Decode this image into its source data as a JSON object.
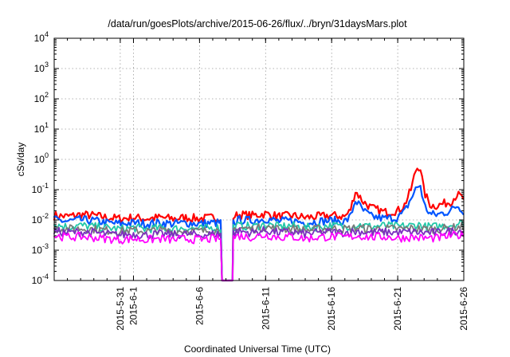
{
  "chart_data": {
    "type": "line",
    "title": "/data/run/goesPlots/archive/2015-06-26/flux/../bryn/31daysMars.plot",
    "xlabel": "Coordinated Universal Time (UTC)",
    "ylabel": "cSv/day",
    "yscale": "log",
    "ylim": [
      0.0001,
      10000
    ],
    "xlim_days": [
      0,
      31
    ],
    "y_ticks": [
      {
        "base": "10",
        "exp": "-4",
        "value": 0.0001
      },
      {
        "base": "10",
        "exp": "-3",
        "value": 0.001
      },
      {
        "base": "10",
        "exp": "-2",
        "value": 0.01
      },
      {
        "base": "10",
        "exp": "-1",
        "value": 0.1
      },
      {
        "base": "10",
        "exp": "0",
        "value": 1
      },
      {
        "base": "10",
        "exp": "1",
        "value": 10
      },
      {
        "base": "10",
        "exp": "2",
        "value": 100
      },
      {
        "base": "10",
        "exp": "3",
        "value": 1000
      },
      {
        "base": "10",
        "exp": "4",
        "value": 10000
      }
    ],
    "x_ticks": [
      {
        "label": "2015-5-31",
        "day": 5
      },
      {
        "label": "2015-6-1",
        "day": 6
      },
      {
        "label": "2015-6-6",
        "day": 11
      },
      {
        "label": "2015-6-11",
        "day": 16
      },
      {
        "label": "2015-6-16",
        "day": 21
      },
      {
        "label": "2015-6-21",
        "day": 26
      },
      {
        "label": "2015-6-26",
        "day": 31
      }
    ],
    "grid": true,
    "dropout": {
      "start_day": 12.7,
      "end_day": 13.5
    },
    "series": [
      {
        "color": "#ff0000",
        "x": [
          0,
          1,
          2,
          3,
          4,
          5,
          6,
          7,
          8,
          9,
          10,
          11,
          12,
          12.6,
          13.6,
          14,
          15,
          16,
          17,
          18,
          19,
          20,
          21,
          22,
          22.4,
          22.8,
          23.4,
          24,
          25,
          26,
          26.5,
          27,
          27.4,
          27.7,
          28,
          28.5,
          29,
          30,
          30.5,
          31
        ],
        "y": [
          0.014,
          0.013,
          0.015,
          0.014,
          0.012,
          0.011,
          0.012,
          0.011,
          0.012,
          0.011,
          0.012,
          0.011,
          0.012,
          0.012,
          0.013,
          0.015,
          0.014,
          0.016,
          0.013,
          0.014,
          0.012,
          0.013,
          0.014,
          0.013,
          0.02,
          0.09,
          0.04,
          0.025,
          0.018,
          0.02,
          0.03,
          0.1,
          0.5,
          0.6,
          0.08,
          0.03,
          0.03,
          0.04,
          0.07,
          0.05
        ]
      },
      {
        "color": "#0055ff",
        "x": [
          0,
          1,
          2,
          3,
          4,
          5,
          6,
          7,
          8,
          9,
          10,
          11,
          12,
          12.6,
          13.6,
          14,
          15,
          16,
          17,
          18,
          19,
          20,
          21,
          22,
          22.4,
          22.8,
          23.4,
          24,
          25,
          26,
          26.5,
          27,
          27.4,
          27.7,
          28,
          28.5,
          29,
          30,
          30.5,
          31
        ],
        "y": [
          0.01,
          0.009,
          0.01,
          0.0095,
          0.008,
          0.0075,
          0.008,
          0.0075,
          0.008,
          0.0075,
          0.008,
          0.0075,
          0.008,
          0.008,
          0.0085,
          0.01,
          0.0095,
          0.011,
          0.009,
          0.0095,
          0.008,
          0.009,
          0.0095,
          0.009,
          0.012,
          0.045,
          0.02,
          0.013,
          0.011,
          0.012,
          0.018,
          0.05,
          0.11,
          0.15,
          0.03,
          0.015,
          0.015,
          0.02,
          0.03,
          0.02
        ]
      },
      {
        "color": "#22c8a8",
        "x": [
          0,
          1,
          2,
          3,
          4,
          5,
          6,
          7,
          8,
          9,
          10,
          11,
          12,
          12.6,
          13.6,
          14,
          15,
          16,
          17,
          18,
          19,
          20,
          21,
          22,
          23,
          24,
          25,
          26,
          27,
          27.7,
          28,
          29,
          30,
          31
        ],
        "y": [
          0.007,
          0.006,
          0.0065,
          0.006,
          0.0055,
          0.005,
          0.0055,
          0.005,
          0.0055,
          0.005,
          0.0055,
          0.005,
          0.0055,
          0.0055,
          0.006,
          0.0065,
          0.006,
          0.007,
          0.006,
          0.0065,
          0.0055,
          0.006,
          0.0065,
          0.006,
          0.007,
          0.006,
          0.0065,
          0.006,
          0.0065,
          0.007,
          0.006,
          0.006,
          0.007,
          0.008
        ]
      },
      {
        "color": "#7a7a7a",
        "x": [
          0,
          1,
          2,
          3,
          4,
          5,
          6,
          7,
          8,
          9,
          10,
          11,
          12,
          12.6,
          13.6,
          14,
          15,
          16,
          17,
          18,
          19,
          20,
          21,
          22,
          23,
          24,
          25,
          26,
          27,
          28,
          29,
          30,
          31
        ],
        "y": [
          0.0055,
          0.005,
          0.0052,
          0.005,
          0.0045,
          0.0042,
          0.0045,
          0.0042,
          0.0045,
          0.0042,
          0.0045,
          0.0042,
          0.0045,
          0.0045,
          0.005,
          0.0055,
          0.005,
          0.0058,
          0.005,
          0.0052,
          0.0045,
          0.005,
          0.0052,
          0.005,
          0.0055,
          0.005,
          0.0052,
          0.005,
          0.0052,
          0.005,
          0.005,
          0.0055,
          0.006
        ]
      },
      {
        "color": "#7b2fbf",
        "x": [
          0,
          1,
          2,
          3,
          4,
          5,
          6,
          7,
          8,
          9,
          10,
          11,
          12,
          12.6,
          13.6,
          14,
          15,
          16,
          17,
          18,
          19,
          20,
          21,
          22,
          23,
          24,
          25,
          26,
          27,
          28,
          29,
          30,
          31
        ],
        "y": [
          0.0042,
          0.0038,
          0.004,
          0.0038,
          0.0034,
          0.0032,
          0.0034,
          0.0032,
          0.0034,
          0.0032,
          0.0034,
          0.0032,
          0.0034,
          0.0034,
          0.0038,
          0.0042,
          0.0038,
          0.0045,
          0.0038,
          0.004,
          0.0034,
          0.0038,
          0.004,
          0.0038,
          0.0042,
          0.0038,
          0.004,
          0.0038,
          0.004,
          0.0038,
          0.0038,
          0.0042,
          0.0045
        ]
      },
      {
        "color": "#ff00ff",
        "x": [
          0,
          1,
          2,
          3,
          4,
          5,
          6,
          7,
          8,
          9,
          10,
          11,
          12,
          12.6,
          13.6,
          14,
          15,
          16,
          17,
          18,
          19,
          20,
          21,
          22,
          23,
          24,
          25,
          26,
          27,
          28,
          29,
          30,
          31
        ],
        "y": [
          0.003,
          0.0027,
          0.0028,
          0.0026,
          0.0024,
          0.0022,
          0.0024,
          0.0022,
          0.0024,
          0.0022,
          0.0024,
          0.0022,
          0.0024,
          0.0024,
          0.0027,
          0.003,
          0.0027,
          0.0032,
          0.0027,
          0.0028,
          0.0024,
          0.0027,
          0.0028,
          0.0027,
          0.003,
          0.0027,
          0.0028,
          0.0025,
          0.0027,
          0.0025,
          0.0025,
          0.003,
          0.0032
        ]
      }
    ]
  }
}
